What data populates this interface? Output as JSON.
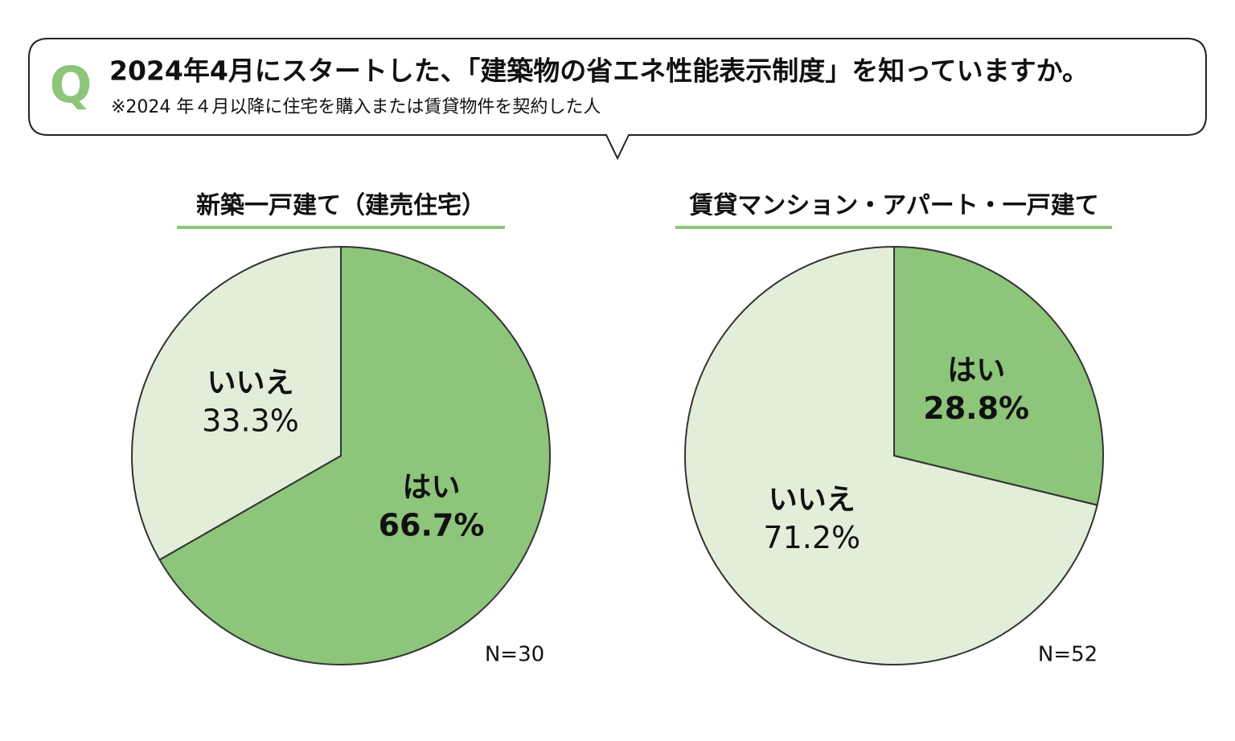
{
  "header": {
    "mark": "Q",
    "question": "2024年4月にスタートした、「建築物の省エネ性能表示制度」を知っていますか。",
    "note": "※2024 年４月以降に住宅を購入または賃貸物件を契約した人"
  },
  "chart_data": [
    {
      "type": "pie",
      "title": "新築一戸建て（建売住宅）",
      "categories": [
        "はい",
        "いいえ"
      ],
      "values": [
        66.7,
        33.3
      ],
      "value_labels": [
        "66.7%",
        "33.3%"
      ],
      "colors": [
        "#8dc57a",
        "#e2eed9"
      ],
      "annotation": "N=30"
    },
    {
      "type": "pie",
      "title": "賃貸マンション・アパート・一戸建て",
      "categories": [
        "はい",
        "いいえ"
      ],
      "values": [
        28.8,
        71.2
      ],
      "value_labels": [
        "28.8%",
        "71.2%"
      ],
      "colors": [
        "#8dc57a",
        "#e2eed9"
      ],
      "annotation": "N=52"
    }
  ]
}
